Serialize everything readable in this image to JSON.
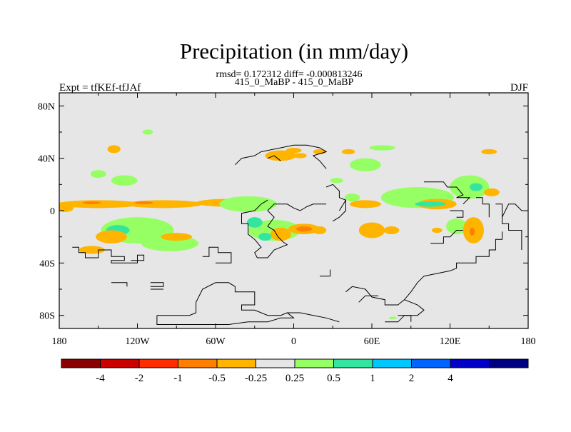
{
  "chart_data": {
    "type": "heatmap",
    "title": "Precipitation (in mm/day)",
    "stats_line": "rmsd= 0.172312 diff= -0.000813246",
    "subtitle": "415_0_MaBP - 415_0_MaBP",
    "left_label": "Expt = tfKEf-tfJAf",
    "right_label": "DJF",
    "x_ticks": [
      {
        "value": -180,
        "label": "180"
      },
      {
        "value": -120,
        "label": "120W"
      },
      {
        "value": -60,
        "label": "60W"
      },
      {
        "value": 0,
        "label": "0"
      },
      {
        "value": 60,
        "label": "60E"
      },
      {
        "value": 120,
        "label": "120E"
      },
      {
        "value": 180,
        "label": "180"
      }
    ],
    "y_ticks": [
      {
        "value": 80,
        "label": "80N"
      },
      {
        "value": 40,
        "label": "40N"
      },
      {
        "value": 0,
        "label": "0"
      },
      {
        "value": -40,
        "label": "40S"
      },
      {
        "value": -80,
        "label": "80S"
      }
    ],
    "xlim": [
      -180,
      180
    ],
    "ylim": [
      -90,
      90
    ],
    "background_color": "#e6e6e6",
    "colorbar": {
      "colors": [
        "#8b0000",
        "#cd0000",
        "#ff2c00",
        "#ff8000",
        "#ffb400",
        "#e6e6e6",
        "#96ff64",
        "#32e6a0",
        "#00c8ff",
        "#0064ff",
        "#0000c8",
        "#000080"
      ],
      "labels": [
        "-4",
        "-2",
        "-1",
        "-0.5",
        "-0.25",
        "0.25",
        "0.5",
        "1",
        "2",
        "4"
      ]
    },
    "anomalies": [
      {
        "lon": -150,
        "lat": 5,
        "rlon": 32,
        "rlat": 3,
        "level": -0.3
      },
      {
        "lon": -100,
        "lat": 5,
        "rlon": 30,
        "rlat": 3,
        "level": -0.3
      },
      {
        "lon": -50,
        "lat": 6,
        "rlon": 25,
        "rlat": 3,
        "level": -0.3
      },
      {
        "lon": -175,
        "lat": 2,
        "rlon": 6,
        "rlat": 3,
        "level": -0.3
      },
      {
        "lon": -155,
        "lat": 6,
        "rlon": 7,
        "rlat": 1,
        "level": -0.6
      },
      {
        "lon": -115,
        "lat": 6,
        "rlon": 7,
        "rlat": 1,
        "level": -0.6
      },
      {
        "lon": -120,
        "lat": -15,
        "rlon": 28,
        "rlat": 10,
        "level": 0.3
      },
      {
        "lon": -135,
        "lat": -15,
        "rlon": 9,
        "rlat": 4,
        "level": 0.7
      },
      {
        "lon": -95,
        "lat": -25,
        "rlon": 22,
        "rlat": 6,
        "level": 0.3
      },
      {
        "lon": -90,
        "lat": -20,
        "rlon": 12,
        "rlat": 3,
        "level": -0.3
      },
      {
        "lon": -155,
        "lat": -30,
        "rlon": 10,
        "rlat": 3,
        "level": -0.3
      },
      {
        "lon": -140,
        "lat": -20,
        "rlon": 12,
        "rlat": 5,
        "level": -0.3
      },
      {
        "lon": -150,
        "lat": 28,
        "rlon": 6,
        "rlat": 3,
        "level": 0.3
      },
      {
        "lon": -130,
        "lat": 23,
        "rlon": 10,
        "rlat": 4,
        "level": 0.3
      },
      {
        "lon": -138,
        "lat": 47,
        "rlon": 5,
        "rlat": 3,
        "level": -0.3
      },
      {
        "lon": -112,
        "lat": 60,
        "rlon": 4,
        "rlat": 2,
        "level": 0.3
      },
      {
        "lon": -35,
        "lat": 5,
        "rlon": 22,
        "rlat": 6,
        "level": 0.3
      },
      {
        "lon": -15,
        "lat": -15,
        "rlon": 20,
        "rlat": 8,
        "level": 0.3
      },
      {
        "lon": -30,
        "lat": -9,
        "rlon": 6,
        "rlat": 4,
        "level": 0.8
      },
      {
        "lon": -10,
        "lat": -18,
        "rlon": 8,
        "rlat": 5,
        "level": -0.4
      },
      {
        "lon": 8,
        "lat": -14,
        "rlon": 12,
        "rlat": 4,
        "level": -0.4
      },
      {
        "lon": 8,
        "lat": -14,
        "rlon": 6,
        "rlat": 2,
        "level": -0.8
      },
      {
        "lon": 20,
        "lat": -15,
        "rlon": 5,
        "rlat": 3,
        "level": -0.3
      },
      {
        "lon": -22,
        "lat": -20,
        "rlon": 5,
        "rlat": 3,
        "level": 0.7
      },
      {
        "lon": -10,
        "lat": 42,
        "rlon": 12,
        "rlat": 4,
        "level": -0.3
      },
      {
        "lon": 0,
        "lat": 46,
        "rlon": 6,
        "rlat": 2,
        "level": -0.3
      },
      {
        "lon": 5,
        "lat": 42,
        "rlon": 5,
        "rlat": 2,
        "level": -0.3
      },
      {
        "lon": 20,
        "lat": 45,
        "rlon": 5,
        "rlat": 2,
        "level": -0.3
      },
      {
        "lon": 42,
        "lat": 45,
        "rlon": 5,
        "rlat": 2,
        "level": -0.3
      },
      {
        "lon": 55,
        "lat": 35,
        "rlon": 12,
        "rlat": 5,
        "level": 0.3
      },
      {
        "lon": 68,
        "lat": 48,
        "rlon": 10,
        "rlat": 2,
        "level": 0.3
      },
      {
        "lon": 33,
        "lat": 23,
        "rlon": 5,
        "rlat": 2,
        "level": 0.3
      },
      {
        "lon": 45,
        "lat": 10,
        "rlon": 6,
        "rlat": 3,
        "level": 0.3
      },
      {
        "lon": 55,
        "lat": 5,
        "rlon": 12,
        "rlat": 3,
        "level": -0.3
      },
      {
        "lon": 60,
        "lat": -15,
        "rlon": 10,
        "rlat": 6,
        "level": -0.3
      },
      {
        "lon": 75,
        "lat": -15,
        "rlon": 6,
        "rlat": 3,
        "level": -0.3
      },
      {
        "lon": 95,
        "lat": 10,
        "rlon": 28,
        "rlat": 8,
        "level": 0.3
      },
      {
        "lon": 110,
        "lat": 5,
        "rlon": 15,
        "rlat": 4,
        "level": -0.3
      },
      {
        "lon": 105,
        "lat": 5,
        "rlon": 12,
        "rlat": 2,
        "level": 0.7
      },
      {
        "lon": 135,
        "lat": 18,
        "rlon": 15,
        "rlat": 9,
        "level": 0.3
      },
      {
        "lon": 140,
        "lat": 18,
        "rlon": 5,
        "rlat": 3,
        "level": 0.7
      },
      {
        "lon": 152,
        "lat": 14,
        "rlon": 6,
        "rlat": 3,
        "level": -0.3
      },
      {
        "lon": 125,
        "lat": -12,
        "rlon": 8,
        "rlat": 6,
        "level": 0.3
      },
      {
        "lon": 138,
        "lat": -15,
        "rlon": 8,
        "rlat": 10,
        "level": -0.3
      },
      {
        "lon": 137,
        "lat": -16,
        "rlon": 2,
        "rlat": 3,
        "level": -0.6
      },
      {
        "lon": 110,
        "lat": -15,
        "rlon": 4,
        "rlat": 2,
        "level": -0.3
      },
      {
        "lon": 150,
        "lat": 45,
        "rlon": 6,
        "rlat": 2,
        "level": -0.3
      },
      {
        "lon": 76,
        "lat": -82,
        "rlon": 3,
        "rlat": 1,
        "level": 0.3
      }
    ],
    "coastlines": [
      [
        [
          -170,
          -28
        ],
        [
          -165,
          -28
        ],
        [
          -165,
          -32
        ],
        [
          -160,
          -32
        ],
        [
          -160,
          -36
        ],
        [
          -150,
          -36
        ],
        [
          -150,
          -30
        ],
        [
          -140,
          -30
        ],
        [
          -140,
          -35
        ],
        [
          -130,
          -35
        ],
        [
          -130,
          -38
        ],
        [
          -140,
          -38
        ],
        [
          -140,
          -40
        ],
        [
          -120,
          -40
        ],
        [
          -120,
          -34
        ],
        [
          -115,
          -34
        ],
        [
          -115,
          -38
        ],
        [
          -125,
          -38
        ]
      ],
      [
        [
          -140,
          -55
        ],
        [
          -128,
          -55
        ],
        [
          -128,
          -58
        ]
      ],
      [
        [
          -110,
          -55
        ],
        [
          -100,
          -55
        ],
        [
          -100,
          -58
        ],
        [
          -110,
          -58
        ]
      ],
      [
        [
          -110,
          -60
        ],
        [
          -100,
          -60
        ]
      ],
      [
        [
          -105,
          -80
        ],
        [
          -80,
          -80
        ],
        [
          -75,
          -78
        ],
        [
          -75,
          -70
        ],
        [
          -70,
          -60
        ],
        [
          -60,
          -55
        ],
        [
          -50,
          -55
        ],
        [
          -45,
          -58
        ],
        [
          -45,
          -62
        ],
        [
          -30,
          -62
        ],
        [
          -30,
          -72
        ],
        [
          -40,
          -72
        ],
        [
          -40,
          -76
        ],
        [
          -30,
          -76
        ],
        [
          -20,
          -80
        ],
        [
          -10,
          -80
        ],
        [
          -5,
          -78
        ],
        [
          0,
          -82
        ],
        [
          -10,
          -82
        ],
        [
          -20,
          -85
        ],
        [
          -35,
          -85
        ],
        [
          -50,
          -87
        ],
        [
          -65,
          -87
        ],
        [
          -85,
          -87
        ],
        [
          -105,
          -87
        ],
        [
          -105,
          -80
        ]
      ],
      [
        [
          -5,
          -78
        ],
        [
          5,
          -78
        ],
        [
          15,
          -80
        ],
        [
          25,
          -82
        ],
        [
          35,
          -85
        ]
      ],
      [
        [
          40,
          -62
        ],
        [
          45,
          -58
        ],
        [
          55,
          -60
        ],
        [
          60,
          -66
        ],
        [
          70,
          -68
        ],
        [
          70,
          -72
        ],
        [
          80,
          -72
        ],
        [
          85,
          -68
        ],
        [
          90,
          -62
        ],
        [
          95,
          -55
        ],
        [
          100,
          -50
        ],
        [
          110,
          -48
        ],
        [
          120,
          -46
        ],
        [
          125,
          -44
        ],
        [
          125,
          -40
        ],
        [
          140,
          -40
        ],
        [
          140,
          -35
        ],
        [
          150,
          -35
        ],
        [
          150,
          -30
        ],
        [
          155,
          -30
        ],
        [
          155,
          -22
        ],
        [
          160,
          -22
        ],
        [
          160,
          -16
        ]
      ],
      [
        [
          85,
          -68
        ],
        [
          95,
          -72
        ],
        [
          100,
          -76
        ],
        [
          95,
          -80
        ],
        [
          85,
          -80
        ],
        [
          80,
          -85
        ],
        [
          70,
          -85
        ]
      ],
      [
        [
          -30,
          0
        ],
        [
          -40,
          -2
        ],
        [
          -40,
          -10
        ],
        [
          -35,
          -10
        ],
        [
          -35,
          -18
        ],
        [
          -30,
          -22
        ],
        [
          -25,
          -28
        ],
        [
          -30,
          -32
        ],
        [
          -28,
          -36
        ],
        [
          -20,
          -36
        ],
        [
          -15,
          -30
        ],
        [
          -10,
          -28
        ],
        [
          -5,
          -26
        ],
        [
          -8,
          -24
        ],
        [
          -12,
          -20
        ],
        [
          -15,
          -15
        ],
        [
          -20,
          -12
        ],
        [
          -15,
          -5
        ],
        [
          -20,
          0
        ],
        [
          -15,
          5
        ],
        [
          -5,
          5
        ],
        [
          0,
          2
        ],
        [
          5,
          0
        ],
        [
          10,
          3
        ],
        [
          15,
          5
        ],
        [
          25,
          5
        ]
      ],
      [
        [
          -30,
          0
        ],
        [
          -25,
          5
        ],
        [
          -20,
          8
        ]
      ],
      [
        [
          -45,
          35
        ],
        [
          -40,
          40
        ],
        [
          -30,
          42
        ],
        [
          -25,
          45
        ],
        [
          -20,
          46
        ],
        [
          -10,
          48
        ],
        [
          0,
          50
        ],
        [
          10,
          50
        ],
        [
          20,
          48
        ],
        [
          25,
          45
        ],
        [
          15,
          42
        ],
        [
          20,
          38
        ],
        [
          25,
          32
        ]
      ],
      [
        [
          25,
          18
        ],
        [
          30,
          20
        ],
        [
          35,
          15
        ],
        [
          35,
          10
        ],
        [
          40,
          8
        ],
        [
          35,
          0
        ]
      ],
      [
        [
          -20,
          40
        ],
        [
          -15,
          42
        ],
        [
          -10,
          38
        ]
      ],
      [
        [
          40,
          8
        ],
        [
          40,
          0
        ],
        [
          35,
          -5
        ],
        [
          30,
          -8
        ]
      ],
      [
        [
          100,
          22
        ],
        [
          115,
          22
        ],
        [
          118,
          18
        ],
        [
          125,
          18
        ],
        [
          130,
          12
        ],
        [
          125,
          10
        ],
        [
          135,
          10
        ],
        [
          130,
          5
        ]
      ],
      [
        [
          120,
          0
        ],
        [
          130,
          0
        ],
        [
          130,
          -5
        ],
        [
          125,
          -5
        ]
      ],
      [
        [
          140,
          10
        ],
        [
          145,
          10
        ],
        [
          145,
          5
        ],
        [
          150,
          5
        ],
        [
          150,
          -5
        ]
      ],
      [
        [
          155,
          5
        ],
        [
          160,
          5
        ],
        [
          160,
          -10
        ],
        [
          165,
          -10
        ],
        [
          165,
          -15
        ],
        [
          175,
          -15
        ],
        [
          175,
          -30
        ]
      ],
      [
        [
          160,
          -5
        ],
        [
          165,
          5
        ],
        [
          170,
          5
        ],
        [
          175,
          0
        ],
        [
          180,
          0
        ]
      ],
      [
        [
          105,
          -25
        ],
        [
          115,
          -25
        ],
        [
          115,
          -20
        ],
        [
          120,
          -20
        ],
        [
          125,
          -15
        ],
        [
          130,
          -15
        ]
      ],
      [
        [
          -70,
          -35
        ],
        [
          -65,
          -35
        ],
        [
          -65,
          -28
        ],
        [
          -58,
          -28
        ],
        [
          -58,
          -32
        ],
        [
          -48,
          -32
        ],
        [
          -48,
          -40
        ],
        [
          -60,
          -40
        ]
      ],
      [
        [
          20,
          -50
        ],
        [
          28,
          -50
        ],
        [
          28,
          -45
        ]
      ],
      [
        [
          80,
          -80
        ],
        [
          90,
          -80
        ],
        [
          90,
          -85
        ]
      ],
      [
        [
          50,
          -70
        ],
        [
          55,
          -65
        ],
        [
          65,
          -65
        ]
      ]
    ]
  }
}
